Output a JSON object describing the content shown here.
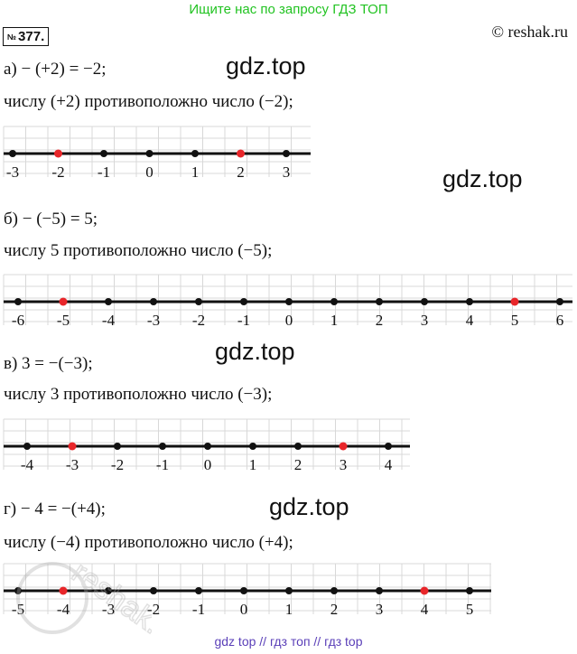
{
  "banner": "Ищите нас по запросу ГДЗ ТОП",
  "task": {
    "prefix": "№",
    "number": "377."
  },
  "copyright": "© reshak.ru",
  "watermark": "gdz.top",
  "seal_text": "reshak.ru",
  "footer": "gdz top  //  гдз топ  //  гдз top",
  "parts": {
    "a": {
      "equation": "а) − (+2) = −2;",
      "statement": "числу (+2) противоположно число (−2);"
    },
    "b": {
      "equation": "б) − (−5) = 5;",
      "statement": "числу 5 противоположно число (−5);"
    },
    "c": {
      "equation": "в) 3 = −(−3);",
      "statement": "числу 3 противоположно число (−3);"
    },
    "d": {
      "equation": "г) − 4 = −(+4);",
      "statement": "числу (−4) противоположно число (+4);"
    }
  },
  "colors": {
    "banner": "#22c322",
    "highlight": "#e8262a",
    "footer": "#5a3fb8"
  },
  "number_lines": [
    {
      "min": -3,
      "max": 3,
      "labels": [
        "-3",
        "-2",
        "-1",
        "0",
        "1",
        "2",
        "3"
      ],
      "highlight": [
        -2,
        2
      ]
    },
    {
      "min": -6,
      "max": 6,
      "labels": [
        "-6",
        "-5",
        "-4",
        "-3",
        "-2",
        "-1",
        "0",
        "1",
        "2",
        "3",
        "4",
        "5",
        "6"
      ],
      "highlight": [
        -5,
        5
      ]
    },
    {
      "min": -4,
      "max": 4,
      "labels": [
        "-4",
        "-3",
        "-2",
        "-1",
        "0",
        "1",
        "2",
        "3",
        "4"
      ],
      "highlight": [
        -3,
        3
      ]
    },
    {
      "min": -5,
      "max": 5,
      "labels": [
        "-5",
        "-4",
        "-3",
        "-2",
        "-1",
        "0",
        "1",
        "2",
        "3",
        "4",
        "5"
      ],
      "highlight": [
        -4,
        4
      ]
    }
  ]
}
